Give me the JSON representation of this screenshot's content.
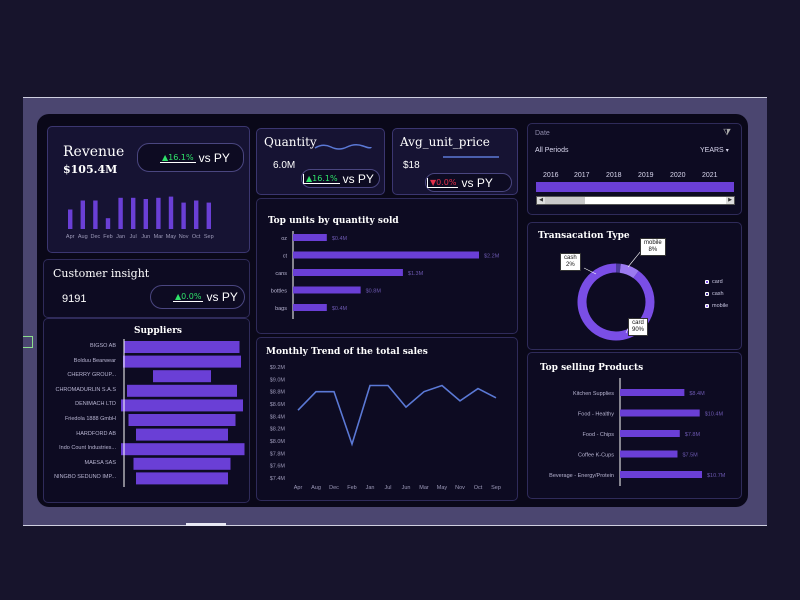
{
  "kpis": {
    "revenue": {
      "title": "Revenue",
      "value": "$105.4M",
      "change": "▲16.1%",
      "vs": "vs PY"
    },
    "quantity": {
      "title": "Quantity",
      "value": "6.0M",
      "change": "▲16.1%",
      "vs": "vs PY"
    },
    "avg_unit_price": {
      "title": "Avg_unit_price",
      "value": "$18",
      "change": "▼0.0%",
      "vs": "vs PY"
    },
    "customer": {
      "title": "Customer insight",
      "value": "9191",
      "change": "▲0.0%",
      "vs": "vs PY"
    }
  },
  "slicer": {
    "title": "Date",
    "period_label": "All Periods",
    "granularity": "YEARS",
    "years": [
      "2016",
      "2017",
      "2018",
      "2019",
      "2020",
      "2021"
    ]
  },
  "colors": {
    "accent": "#6a3fd6",
    "accent_light": "#7a4ee6",
    "line": "#5b79d6",
    "panel": "#0d0b22",
    "up": "#2fe26a",
    "down": "#e4304a"
  },
  "icons": {
    "filter": "filter-clear-icon",
    "dropdown": "chevron-down-icon"
  },
  "chart_data": [
    {
      "id": "revenue_monthly",
      "type": "bar",
      "categories": [
        "Apr",
        "Aug",
        "Dec",
        "Feb",
        "Jan",
        "Jul",
        "Jun",
        "Mar",
        "May",
        "Nov",
        "Oct",
        "Sep"
      ],
      "values": [
        6.5,
        9.5,
        9.5,
        3.6,
        10.4,
        10.4,
        10.0,
        10.4,
        10.8,
        8.8,
        9.5,
        8.8
      ],
      "ylim": [
        0,
        12
      ]
    },
    {
      "id": "top_units",
      "type": "bar",
      "title": "Top units by quantity sold",
      "orientation": "horizontal",
      "categories": [
        "oz",
        "ct",
        "cans",
        "bottles",
        "bags"
      ],
      "values": [
        0.4,
        2.2,
        1.3,
        0.8,
        0.4
      ],
      "data_labels": [
        "$0.4M",
        "$2.2M",
        "$1.3M",
        "$0.8M",
        "$0.4M"
      ]
    },
    {
      "id": "monthly_trend",
      "type": "line",
      "title": "Monthly Trend of the total sales",
      "categories": [
        "Apr",
        "Aug",
        "Dec",
        "Feb",
        "Jan",
        "Jul",
        "Jun",
        "Mar",
        "May",
        "Nov",
        "Oct",
        "Sep"
      ],
      "values": [
        8.5,
        8.8,
        8.8,
        7.95,
        8.9,
        8.9,
        8.55,
        8.8,
        8.9,
        8.65,
        8.85,
        8.7
      ],
      "yticks": [
        "$7.4M",
        "$7.6M",
        "$7.8M",
        "$8.0M",
        "$8.2M",
        "$8.4M",
        "$8.6M",
        "$8.8M",
        "$9.0M",
        "$9.2M"
      ],
      "ylim": [
        7.4,
        9.2
      ]
    },
    {
      "id": "suppliers",
      "type": "bar",
      "title": "Suppliers",
      "orientation": "funnel",
      "categories": [
        "BIGSO AB",
        "Bolduu Bearwear",
        "CHERRY GROUP...",
        "CHROMADURLIN S.A.S",
        "DENIMACH LTD",
        "Friedola 1888 GmbH",
        "HARDFORD AB",
        "Indo Count Industries...",
        "MAESA SAS",
        "NINGBO SEDUNO IMP..."
      ],
      "values": [
        115,
        118,
        58,
        110,
        122,
        107,
        92,
        125,
        97,
        92
      ]
    },
    {
      "id": "transaction_type",
      "type": "pie",
      "title": "Transacation Type",
      "categories": [
        "card",
        "cash",
        "mobile"
      ],
      "values": [
        90,
        2,
        8
      ],
      "data_labels": [
        "card\n90%",
        "cash\n2%",
        "mobile\n8%"
      ]
    },
    {
      "id": "top_products",
      "type": "bar",
      "title": "Top selling Products",
      "orientation": "horizontal",
      "categories": [
        "Kitchen Supplies",
        "Food - Healthy",
        "Food - Chips",
        "Coffee K-Cups",
        "Beverage - Energy/Protein"
      ],
      "values": [
        8.4,
        10.4,
        7.8,
        7.5,
        10.7
      ],
      "data_labels": [
        "$8.4M",
        "$10.4M",
        "$7.8M",
        "$7.5M",
        "$10.7M"
      ]
    }
  ]
}
